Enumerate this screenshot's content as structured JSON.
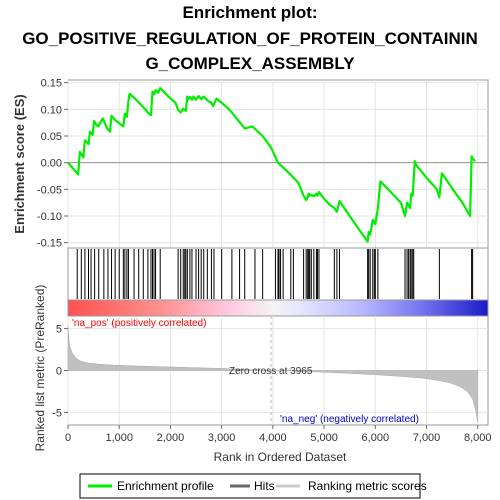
{
  "chart_data": {
    "type": "line",
    "title_lines": [
      "Enrichment plot:",
      "GO_POSITIVE_REGULATION_OF_PROTEIN_CONTAININ",
      "G_COMPLEX_ASSEMBLY"
    ],
    "xlabel": "Rank in Ordered Dataset",
    "ylabel_top": "Enrichment score (ES)",
    "ylabel_bottom": "Ranked list metric (PreRanked)",
    "xlim": [
      0,
      8200
    ],
    "x_ticks": [
      0,
      1000,
      2000,
      3000,
      4000,
      5000,
      6000,
      7000,
      8000
    ],
    "x_tick_labels": [
      "0",
      "1,000",
      "2,000",
      "3,000",
      "4,000",
      "5,000",
      "6,000",
      "7,000",
      "8,000"
    ],
    "es_ylim": [
      -0.16,
      0.155
    ],
    "es_ticks": [
      0.15,
      0.1,
      0.05,
      0.0,
      -0.05,
      -0.1,
      -0.15
    ],
    "es_tick_labels": [
      "0.15",
      "0.10",
      "0.05",
      "0.00",
      "-0.05",
      "-0.10",
      "-0.15"
    ],
    "metric_ylim": [
      -6.5,
      6.5
    ],
    "metric_ticks": [
      5,
      0,
      -5
    ],
    "metric_tick_labels": [
      "5",
      "0",
      "-5"
    ],
    "grid": true,
    "series": [
      {
        "name": "Enrichment profile",
        "color": "#00ee00",
        "x": [
          0,
          200,
          230,
          300,
          330,
          400,
          430,
          480,
          510,
          560,
          590,
          680,
          760,
          820,
          850,
          920,
          1000,
          1080,
          1110,
          1150,
          1180,
          1200,
          1290,
          1380,
          1470,
          1560,
          1620,
          1650,
          1680,
          1710,
          1760,
          1800,
          1860,
          1960,
          2100,
          2150,
          2200,
          2250,
          2300,
          2330,
          2350,
          2380,
          2420,
          2450,
          2500,
          2550,
          2600,
          2650,
          2720,
          2800,
          2830,
          2900,
          3000,
          3100,
          3200,
          3300,
          3350,
          3450,
          3600,
          3800,
          3965,
          4100,
          4300,
          4500,
          4600,
          4650,
          4680,
          4700,
          4720,
          4750,
          4800,
          4850,
          4870,
          4900,
          5000,
          5100,
          5200,
          5250,
          5300,
          5500,
          5700,
          5850,
          5870,
          5900,
          5950,
          6000,
          6050,
          6100,
          6300,
          6500,
          6580,
          6620,
          6650,
          6680,
          6700,
          6730,
          6750,
          6770,
          6800,
          7000,
          7200,
          7250,
          7300,
          7500,
          7700,
          7850,
          7880,
          7900,
          7950
        ],
        "values": [
          0.0,
          -0.022,
          0.02,
          0.01,
          0.042,
          0.035,
          0.058,
          0.052,
          0.078,
          0.07,
          0.068,
          0.083,
          0.065,
          0.058,
          0.088,
          0.08,
          0.074,
          0.068,
          0.092,
          0.086,
          0.115,
          0.129,
          0.122,
          0.113,
          0.104,
          0.094,
          0.089,
          0.133,
          0.128,
          0.136,
          0.131,
          0.14,
          0.134,
          0.124,
          0.112,
          0.099,
          0.094,
          0.101,
          0.097,
          0.124,
          0.119,
          0.123,
          0.118,
          0.124,
          0.118,
          0.125,
          0.119,
          0.124,
          0.117,
          0.112,
          0.106,
          0.12,
          0.112,
          0.104,
          0.094,
          0.082,
          0.076,
          0.064,
          0.068,
          0.05,
          0.028,
          0.0,
          -0.018,
          -0.038,
          -0.062,
          -0.07,
          -0.065,
          -0.058,
          -0.062,
          -0.06,
          -0.063,
          -0.058,
          -0.062,
          -0.055,
          -0.068,
          -0.078,
          -0.085,
          -0.092,
          -0.072,
          -0.1,
          -0.128,
          -0.148,
          -0.13,
          -0.135,
          -0.107,
          -0.115,
          -0.085,
          -0.035,
          -0.055,
          -0.075,
          -0.1,
          -0.075,
          -0.08,
          -0.085,
          -0.058,
          -0.062,
          -0.03,
          0.003,
          -0.005,
          -0.028,
          -0.05,
          -0.065,
          -0.02,
          -0.048,
          -0.075,
          -0.1,
          0.012,
          0.008,
          0.003
        ]
      }
    ],
    "hits_x": [
      180,
      260,
      330,
      400,
      450,
      520,
      600,
      700,
      780,
      850,
      920,
      1000,
      1080,
      1110,
      1150,
      1180,
      1290,
      1380,
      1470,
      1560,
      1620,
      1650,
      1680,
      1710,
      1800,
      2150,
      2200,
      2250,
      2280,
      2300,
      2330,
      2380,
      2420,
      2500,
      2550,
      2600,
      2650,
      2720,
      2800,
      2850,
      3000,
      3200,
      3350,
      3450,
      3650,
      3800,
      4050,
      4100,
      4120,
      4150,
      4200,
      4350,
      4400,
      4600,
      4650,
      4680,
      4700,
      4720,
      4750,
      4800,
      4850,
      4870,
      4900,
      5200,
      5250,
      5300,
      5850,
      5870,
      5900,
      5950,
      5980,
      6000,
      6050,
      6580,
      6620,
      6650,
      6680,
      6700,
      6730,
      6750,
      7250,
      7880,
      7900
    ],
    "metric_curve": {
      "x": [
        0,
        30,
        80,
        150,
        250,
        400,
        600,
        900,
        1300,
        1800,
        2400,
        3000,
        3500,
        3965,
        4500,
        5000,
        5500,
        6000,
        6500,
        6900,
        7200,
        7450,
        7650,
        7800,
        7900,
        7960,
        8000
      ],
      "values": [
        5.2,
        3.0,
        2.1,
        1.5,
        1.1,
        0.9,
        0.75,
        0.65,
        0.55,
        0.45,
        0.35,
        0.25,
        0.12,
        0.0,
        -0.1,
        -0.2,
        -0.35,
        -0.5,
        -0.7,
        -0.9,
        -1.15,
        -1.45,
        -1.9,
        -2.5,
        -3.4,
        -4.8,
        -6.2
      ]
    },
    "zero_cross_rank": 3965,
    "annotations": {
      "pos_label": "'na_pos' (positively correlated)",
      "neg_label": "'na_neg' (negatively correlated)",
      "zero_cross": "Zero cross at 3965"
    },
    "legend": {
      "placement": "bottom",
      "items": [
        "Enrichment profile",
        "Hits",
        "Ranking metric scores"
      ]
    },
    "colors": {
      "enrichment": "#00ee00",
      "hits": "#000000",
      "metric_fill": "#c0c0c0",
      "pos_text": "#ff0000",
      "neg_text": "#0000cc",
      "zero_line": "#bbbbbb"
    }
  }
}
